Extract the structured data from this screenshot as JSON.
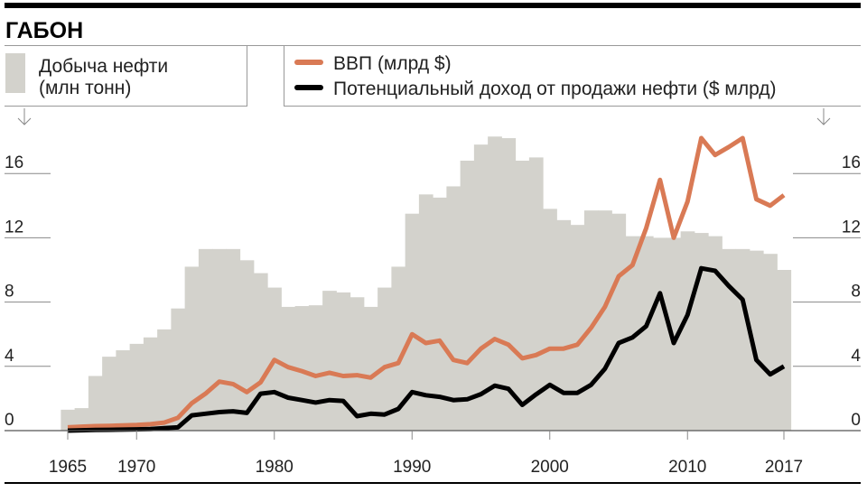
{
  "chart_data": {
    "type": "bar+line",
    "title": "ГАБОН",
    "legend": {
      "bars": "Добыча нефти\n(млн тонн)",
      "bars_line1": "Добыча нефти",
      "bars_line2": "(млн тонн)",
      "gdp": "ВВП (млрд $)",
      "revenue": "Потенциальный доход от продажи нефти ($ млрд)",
      "placement": "top"
    },
    "colors": {
      "bars": "#d3d2cc",
      "gdp": "#d97a55",
      "revenue": "#000000"
    },
    "x": [
      1965,
      1966,
      1967,
      1968,
      1969,
      1970,
      1971,
      1972,
      1973,
      1974,
      1975,
      1976,
      1977,
      1978,
      1979,
      1980,
      1981,
      1982,
      1983,
      1984,
      1985,
      1986,
      1987,
      1988,
      1989,
      1990,
      1991,
      1992,
      1993,
      1994,
      1995,
      1996,
      1997,
      1998,
      1999,
      2000,
      2001,
      2002,
      2003,
      2004,
      2005,
      2006,
      2007,
      2008,
      2009,
      2010,
      2011,
      2012,
      2013,
      2014,
      2015,
      2016,
      2017
    ],
    "xticks": [
      "1965",
      "1970",
      "1980",
      "1990",
      "2000",
      "2010",
      "2017"
    ],
    "yticks": [
      "0",
      "4",
      "8",
      "12",
      "16"
    ],
    "ylim": [
      0,
      18.5
    ],
    "xlim": [
      1965,
      2017
    ],
    "grid": "left-and-right tick stubs",
    "series": [
      {
        "name": "Добыча нефти (млн тонн)",
        "kind": "bar",
        "values": [
          1.3,
          1.4,
          3.4,
          4.6,
          5.0,
          5.4,
          5.8,
          6.3,
          7.6,
          10.2,
          11.3,
          11.3,
          11.3,
          10.6,
          9.8,
          8.9,
          7.7,
          7.75,
          7.8,
          8.7,
          8.6,
          8.3,
          7.7,
          8.9,
          10.2,
          13.5,
          14.7,
          14.5,
          15.2,
          16.8,
          17.8,
          18.3,
          18.2,
          16.8,
          17.0,
          13.8,
          13.1,
          12.8,
          13.7,
          13.7,
          13.5,
          12.1,
          12.1,
          12.0,
          12.0,
          12.4,
          12.3,
          12.1,
          11.3,
          11.3,
          11.2,
          11.0,
          10.0
        ]
      },
      {
        "name": "ВВП (млрд $)",
        "kind": "line",
        "values": [
          0.2,
          0.25,
          0.28,
          0.3,
          0.32,
          0.35,
          0.4,
          0.5,
          0.8,
          1.7,
          2.3,
          3.05,
          2.9,
          2.4,
          3.0,
          4.4,
          3.95,
          3.7,
          3.4,
          3.6,
          3.4,
          3.45,
          3.3,
          3.95,
          4.2,
          6.0,
          5.45,
          5.6,
          4.4,
          4.2,
          5.1,
          5.7,
          5.35,
          4.5,
          4.7,
          5.1,
          5.1,
          5.35,
          6.4,
          7.7,
          9.6,
          10.3,
          12.6,
          15.6,
          12.0,
          14.25,
          18.2,
          17.15,
          17.65,
          18.2,
          14.4,
          14.0,
          14.65
        ]
      },
      {
        "name": "Потенциальный доход от продажи нефти ($ млрд)",
        "kind": "line",
        "values": [
          0.0,
          0.02,
          0.04,
          0.05,
          0.06,
          0.08,
          0.1,
          0.15,
          0.2,
          0.95,
          1.05,
          1.15,
          1.2,
          1.1,
          2.3,
          2.4,
          2.05,
          1.9,
          1.75,
          1.9,
          1.85,
          0.9,
          1.05,
          1.0,
          1.35,
          2.4,
          2.2,
          2.1,
          1.9,
          1.95,
          2.27,
          2.8,
          2.6,
          1.6,
          2.25,
          2.85,
          2.35,
          2.35,
          2.85,
          3.85,
          5.45,
          5.8,
          6.5,
          8.55,
          5.45,
          7.2,
          10.1,
          9.95,
          9.0,
          8.15,
          4.4,
          3.5,
          4.0
        ]
      }
    ]
  }
}
